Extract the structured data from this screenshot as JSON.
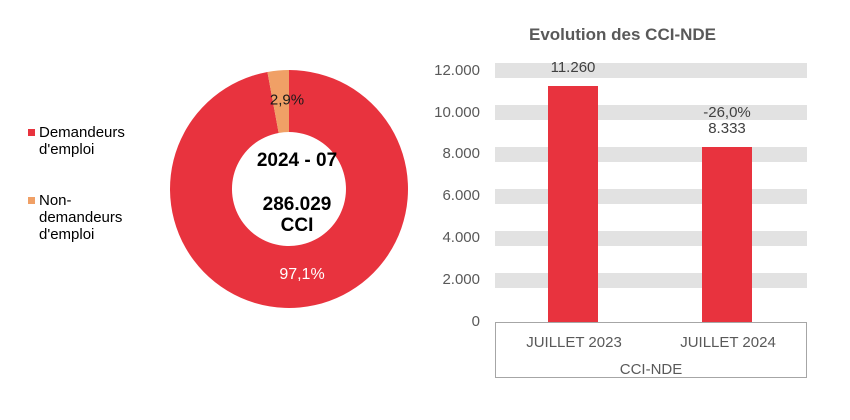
{
  "donut": {
    "center_line1": "2024 - 07",
    "center_line2": "286.029",
    "center_line3": "CCI",
    "label_majority": "97,1%",
    "label_minority": "2,9%"
  },
  "chart_data": [
    {
      "type": "pie",
      "subtype": "donut",
      "labels": [
        "Demandeurs d'emploi",
        "Non-demandeurs d'emploi"
      ],
      "values": [
        97.1,
        2.9
      ],
      "value_labels": [
        "97,1%",
        "2,9%"
      ],
      "colors": [
        "#e8333e",
        "#f0a066"
      ],
      "center_text": [
        "2024 - 07",
        "286.029",
        "CCI"
      ],
      "legend_position": "left",
      "start_angle_deg": 0,
      "direction": "clockwise"
    },
    {
      "type": "bar",
      "title": "Evolution des CCI-NDE",
      "categories": [
        "JUILLET 2023",
        "JUILLET 2024"
      ],
      "values": [
        11260,
        8333
      ],
      "bar_labels": [
        "11.260",
        "8.333"
      ],
      "annotations": [
        "",
        "-26,0%"
      ],
      "xlabel": "CCI-NDE",
      "ylabel": "",
      "ylim": [
        0,
        12000
      ],
      "yticks": [
        0,
        2000,
        4000,
        6000,
        8000,
        10000,
        12000
      ],
      "ytick_labels": [
        "0",
        "2.000",
        "4.000",
        "6.000",
        "8.000",
        "10.000",
        "12.000"
      ],
      "bar_color": "#e8333e",
      "gridline_color": "#e2e2e2",
      "grid": true,
      "legend_position": "none"
    }
  ]
}
